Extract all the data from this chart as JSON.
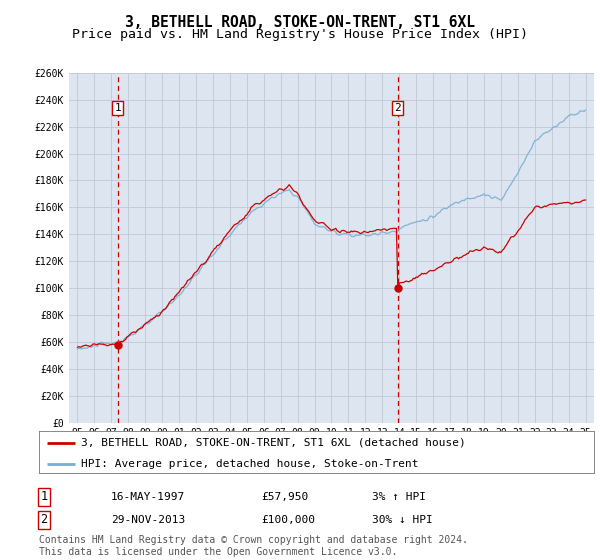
{
  "title": "3, BETHELL ROAD, STOKE-ON-TRENT, ST1 6XL",
  "subtitle": "Price paid vs. HM Land Registry's House Price Index (HPI)",
  "ylim": [
    0,
    260000
  ],
  "xlim": [
    1994.5,
    2025.5
  ],
  "yticks": [
    0,
    20000,
    40000,
    60000,
    80000,
    100000,
    120000,
    140000,
    160000,
    180000,
    200000,
    220000,
    240000,
    260000
  ],
  "ytick_labels": [
    "£0",
    "£20K",
    "£40K",
    "£60K",
    "£80K",
    "£100K",
    "£120K",
    "£140K",
    "£160K",
    "£180K",
    "£200K",
    "£220K",
    "£240K",
    "£260K"
  ],
  "xticks": [
    1995,
    1996,
    1997,
    1998,
    1999,
    2000,
    2001,
    2002,
    2003,
    2004,
    2005,
    2006,
    2007,
    2008,
    2009,
    2010,
    2011,
    2012,
    2013,
    2014,
    2015,
    2016,
    2017,
    2018,
    2019,
    2020,
    2021,
    2022,
    2023,
    2024,
    2025
  ],
  "xtick_labels": [
    "95\n96",
    "96\n97",
    "97\n98",
    "98\n99",
    "99\n00",
    "00\n01",
    "01\n02",
    "02\n03",
    "03\n04",
    "04\n05",
    "05\n06",
    "06\n07",
    "07\n08",
    "08\n09",
    "09\n10",
    "10\n11",
    "11\n12",
    "12\n13",
    "13\n14",
    "14\n15",
    "15\n16",
    "16\n17",
    "17\n18",
    "18\n19",
    "19\n20",
    "20\n21",
    "21\n22",
    "22\n23",
    "23\n24",
    "24\n25",
    "25"
  ],
  "background_color": "#dde6f0",
  "grid_color": "#c0c8d8",
  "line1_color": "#cc0000",
  "line2_color": "#7aadd4",
  "vline_color": "#cc0000",
  "point1_x": 1997.37,
  "point1_y": 57950,
  "point1_label": "1",
  "point1_date": "16-MAY-1997",
  "point1_price": "£57,950",
  "point1_hpi": "3% ↑ HPI",
  "point2_x": 2013.91,
  "point2_y": 100000,
  "point2_label": "2",
  "point2_date": "29-NOV-2013",
  "point2_price": "£100,000",
  "point2_hpi": "30% ↓ HPI",
  "legend1_label": "3, BETHELL ROAD, STOKE-ON-TRENT, ST1 6XL (detached house)",
  "legend2_label": "HPI: Average price, detached house, Stoke-on-Trent",
  "footnote": "Contains HM Land Registry data © Crown copyright and database right 2024.\nThis data is licensed under the Open Government Licence v3.0.",
  "title_fontsize": 10.5,
  "subtitle_fontsize": 9.5,
  "tick_fontsize": 7,
  "legend_fontsize": 8,
  "footnote_fontsize": 7
}
